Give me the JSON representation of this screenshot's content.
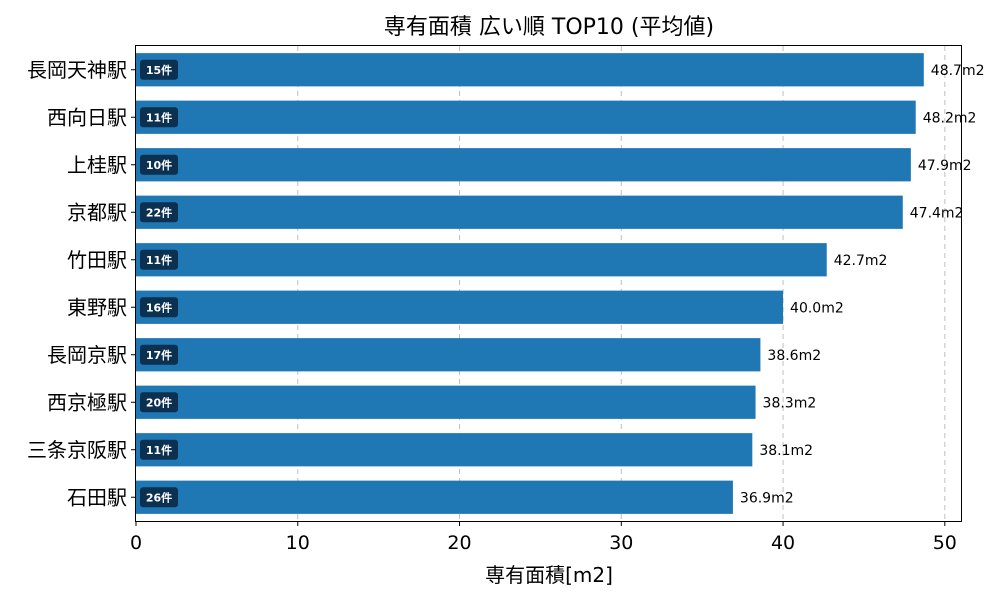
{
  "chart_data": {
    "type": "bar",
    "orientation": "horizontal",
    "title": "専有面積 広い順 TOP10 (平均値)",
    "xlabel": "専有面積[m2]",
    "ylabel": "",
    "xlim": [
      0,
      51
    ],
    "xticks": [
      0,
      10,
      20,
      30,
      40,
      50
    ],
    "grid": "x-dashed",
    "bar_color": "#1f77b4",
    "badge_color": "#0b3050",
    "categories": [
      "長岡天神駅",
      "西向日駅",
      "上桂駅",
      "京都駅",
      "竹田駅",
      "東野駅",
      "長岡京駅",
      "西京極駅",
      "三条京阪駅",
      "石田駅"
    ],
    "values": [
      48.7,
      48.2,
      47.9,
      47.4,
      42.7,
      40.0,
      38.6,
      38.3,
      38.1,
      36.9
    ],
    "value_labels": [
      "48.7m2",
      "48.2m2",
      "47.9m2",
      "47.4m2",
      "42.7m2",
      "40.0m2",
      "38.6m2",
      "38.3m2",
      "38.1m2",
      "36.9m2"
    ],
    "counts": [
      "15件",
      "11件",
      "10件",
      "22件",
      "11件",
      "16件",
      "17件",
      "20件",
      "11件",
      "26件"
    ]
  }
}
